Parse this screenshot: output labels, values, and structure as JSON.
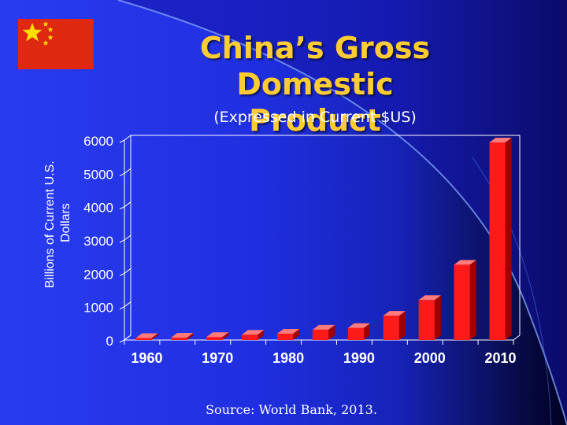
{
  "slide": {
    "title_line1": "China’s Gross Domestic",
    "title_line2": "Product",
    "subtitle": "(Expressed in Current $US)",
    "source": "Source:  World Bank,  2013."
  },
  "colors": {
    "title": "#ffcc33",
    "bar_front": "#ff1a1a",
    "bar_top": "#ff7a7a",
    "bar_side": "#a00000",
    "flag_red": "#de2910",
    "flag_star": "#ffde00"
  },
  "chart_data": {
    "type": "bar",
    "title": "",
    "xlabel": "",
    "ylabel": "Billions of Current U.S. Dollars",
    "ylabel_lines": [
      "Billions of Current U.S.",
      "Dollars"
    ],
    "ylim": [
      0,
      6000
    ],
    "yticks": [
      0,
      1000,
      2000,
      3000,
      4000,
      5000,
      6000
    ],
    "xtick_labels": [
      "1960",
      "1970",
      "1980",
      "1990",
      "2000",
      "2010"
    ],
    "xtick_every": 2,
    "categories": [
      "1960",
      "1965",
      "1970",
      "1975",
      "1980",
      "1985",
      "1990",
      "1995",
      "2000",
      "2005",
      "2010"
    ],
    "values": [
      60,
      70,
      90,
      160,
      190,
      310,
      360,
      730,
      1200,
      2260,
      5930
    ],
    "grid": false,
    "bars_3d": true
  }
}
